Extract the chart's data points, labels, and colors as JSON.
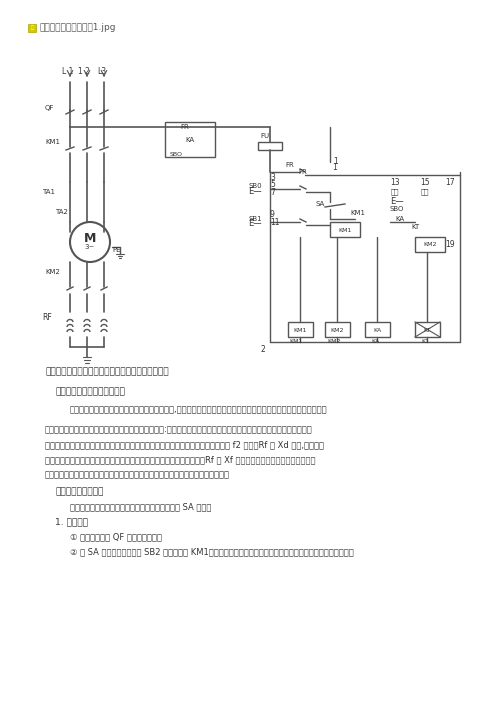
{
  "title": "绕线式电动机转子回路串频敏变阻器启动电路原理图",
  "header_text": "此主题相关图片如下：1.jpg",
  "section1_title": "一、频敏变阻器的工作原理：",
  "section1_body": "频敏变阻器实际上是一个特殊的三相铁芯电抗器,它有一个三柱铁芯，每个柱上有一个绕组，三相绕组一般接成星形。",
  "section2_body1": "频敏变阻器的阻抗随着电流频率的变化而有明显的变化:电流频率高时，阻抗值也高；电流频率低时，阻抗值也低。频敏变",
  "section2_body2": "阻器的这一频率特性非常适合于控制异步电动机的启动过程。启动时，转子电流频率 f2 最大，Rf 与 Xd 最大,电动机可",
  "section2_body3": "以获得较大起动转矩。启动后，随着转速的提高转子电流频率逐渐降低，Rf 和 Xf 都自动减小，所以电动机可以近似地",
  "section2_body4": "得到恒矩矩特性，实现了电动机的无级启动。启动完毕后，频敏变阻器应短路切除。",
  "section3_title": "二、启动电路原理：",
  "section3_body": "启动过程可分为自动控制和手动控制，由转换开关 SA 完成。",
  "section4_title": "1. 自动控制",
  "step1": "① 合上空气开关 QF 接通三相电源。",
  "step2": "② 将 SA 拨向自动位置，按 SB2 交流接触器 KM1线圈得电并自锁，主触头闭合，动机定子接入三相电源开始启动。",
  "bg_color": "#ffffff",
  "line_color": "#555555",
  "text_color": "#333333"
}
